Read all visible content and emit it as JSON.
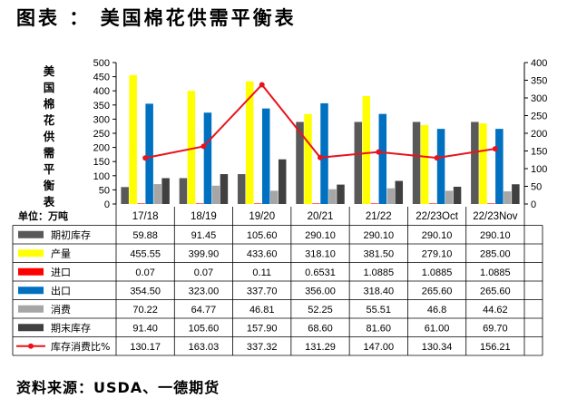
{
  "page": {
    "title": "图表 ： 美国棉花供需平衡表",
    "source": "资料来源：USDA、一德期货"
  },
  "chart_data": {
    "type": "bar",
    "title": "美国棉花供需平衡表",
    "unit_label": "单位：万吨",
    "categories": [
      "17/18",
      "18/19",
      "19/20",
      "20/21",
      "21/22",
      "22/23Oct",
      "22/23Nov"
    ],
    "ylim": [
      0,
      500
    ],
    "y2lim": [
      0,
      400
    ],
    "yticks": [
      0,
      50,
      100,
      150,
      200,
      250,
      300,
      350,
      400,
      450,
      500
    ],
    "y2ticks": [
      0,
      50,
      100,
      150,
      200,
      250,
      300,
      350,
      400
    ],
    "legend_position": "bottom-table",
    "gridlines": false,
    "series": [
      {
        "name": "期初库存",
        "type": "bar",
        "axis": "left",
        "color": "#595959",
        "values": [
          59.88,
          91.45,
          105.6,
          290.1,
          290.1,
          290.1,
          290.1
        ],
        "labels": [
          "59.88",
          "91.45",
          "105.60",
          "290.10",
          "290.10",
          "290.10",
          "290.10"
        ]
      },
      {
        "name": "产量",
        "type": "bar",
        "axis": "left",
        "color": "#FFFF00",
        "values": [
          455.55,
          399.9,
          433.6,
          318.1,
          381.5,
          279.1,
          285.0
        ],
        "labels": [
          "455.55",
          "399.90",
          "433.60",
          "318.10",
          "381.50",
          "279.10",
          "285.00"
        ]
      },
      {
        "name": "进口",
        "type": "bar",
        "axis": "left",
        "color": "#FF0000",
        "values": [
          0.07,
          0.07,
          0.11,
          0.6531,
          1.0885,
          1.0885,
          1.0885
        ],
        "labels": [
          "0.07",
          "0.07",
          "0.11",
          "0.6531",
          "1.0885",
          "1.0885",
          "1.0885"
        ]
      },
      {
        "name": "出口",
        "type": "bar",
        "axis": "left",
        "color": "#0070C0",
        "values": [
          354.5,
          323.0,
          337.7,
          356.0,
          318.4,
          265.6,
          265.6
        ],
        "labels": [
          "354.50",
          "323.00",
          "337.70",
          "356.00",
          "318.40",
          "265.60",
          "265.60"
        ]
      },
      {
        "name": "消费",
        "type": "bar",
        "axis": "left",
        "color": "#A6A6A6",
        "values": [
          70.22,
          64.77,
          46.81,
          52.25,
          55.51,
          46.8,
          44.62
        ],
        "labels": [
          "70.22",
          "64.77",
          "46.81",
          "52.25",
          "55.51",
          "46.8",
          "44.62"
        ]
      },
      {
        "name": "期末库存",
        "type": "bar",
        "axis": "left",
        "color": "#404040",
        "values": [
          91.4,
          105.6,
          157.9,
          68.6,
          81.6,
          61.0,
          69.7
        ],
        "labels": [
          "91.40",
          "105.60",
          "157.90",
          "68.60",
          "81.60",
          "61.00",
          "69.70"
        ]
      },
      {
        "name": "库存消费比%",
        "type": "line",
        "axis": "right",
        "color": "#E8141C",
        "values": [
          130.17,
          163.03,
          337.32,
          131.29,
          147.0,
          130.34,
          156.21
        ],
        "labels": [
          "130.17",
          "163.03",
          "337.32",
          "131.29",
          "147.00",
          "130.34",
          "156.21"
        ]
      }
    ]
  }
}
